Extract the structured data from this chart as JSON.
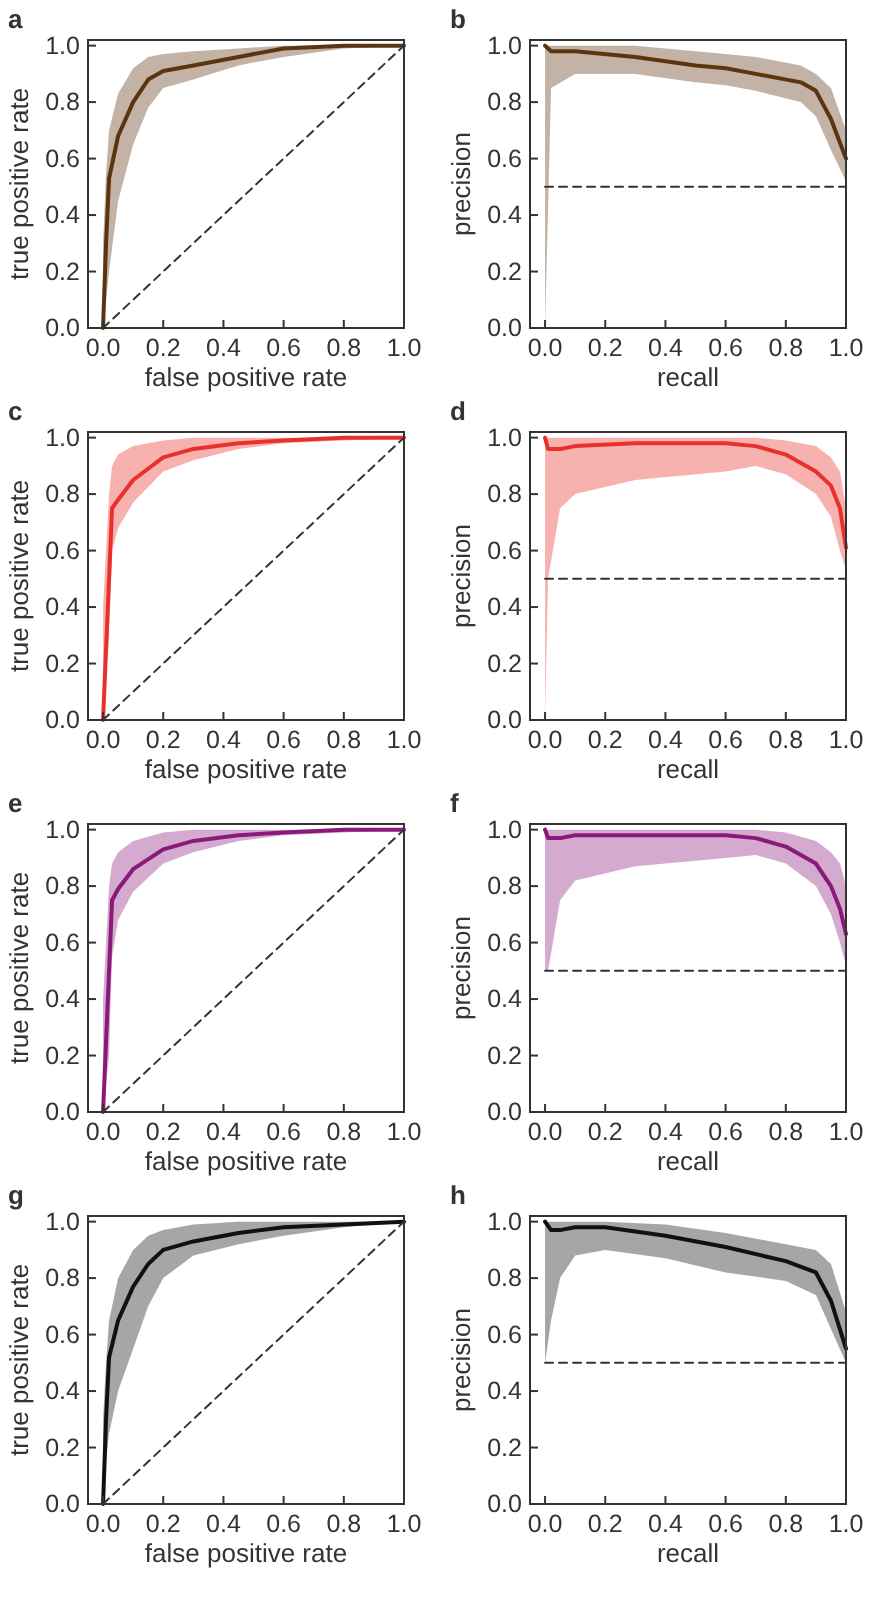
{
  "chart_data": [
    {
      "type": "line",
      "title": "a",
      "xlabel": "false positive rate",
      "ylabel": "true positive rate",
      "xlim": [
        -0.05,
        1.0
      ],
      "ylim": [
        0,
        1.02
      ],
      "xticks": [
        {
          "value": 0,
          "label": "0.0"
        },
        {
          "value": 0.2,
          "label": "0.2"
        },
        {
          "value": 0.4,
          "label": "0.4"
        },
        {
          "value": 0.6,
          "label": "0.6"
        },
        {
          "value": 0.8,
          "label": "0.8"
        },
        {
          "value": 1,
          "label": "1.0"
        }
      ],
      "yticks": [
        {
          "value": 0,
          "label": "0.0"
        },
        {
          "value": 0.2,
          "label": "0.2"
        },
        {
          "value": 0.4,
          "label": "0.4"
        },
        {
          "value": 0.6,
          "label": "0.6"
        },
        {
          "value": 0.8,
          "label": "0.8"
        },
        {
          "value": 1,
          "label": "1.0"
        }
      ],
      "series": [
        {
          "color": "#5c3510",
          "x": [
            0,
            0.01,
            0.02,
            0.05,
            0.1,
            0.15,
            0.2,
            0.3,
            0.45,
            0.6,
            0.8,
            1
          ],
          "values": [
            0,
            0.3,
            0.53,
            0.68,
            0.8,
            0.88,
            0.91,
            0.93,
            0.96,
            0.99,
            1,
            1
          ],
          "lower": [
            0,
            0.1,
            0.2,
            0.45,
            0.65,
            0.78,
            0.85,
            0.88,
            0.93,
            0.96,
            0.99,
            1
          ],
          "upper": [
            0.3,
            0.55,
            0.7,
            0.83,
            0.92,
            0.96,
            0.97,
            0.98,
            0.99,
            1,
            1,
            1
          ]
        },
        {
          "color": "#333333",
          "line_style": "dashed",
          "x": [
            0,
            1
          ],
          "values": [
            0,
            1
          ]
        }
      ]
    },
    {
      "type": "line",
      "title": "b",
      "xlabel": "recall",
      "ylabel": "precision",
      "xlim": [
        -0.05,
        1.0
      ],
      "ylim": [
        0,
        1.02
      ],
      "xticks": [
        {
          "value": 0,
          "label": "0.0"
        },
        {
          "value": 0.2,
          "label": "0.2"
        },
        {
          "value": 0.4,
          "label": "0.4"
        },
        {
          "value": 0.6,
          "label": "0.6"
        },
        {
          "value": 0.8,
          "label": "0.8"
        },
        {
          "value": 1,
          "label": "1.0"
        }
      ],
      "yticks": [
        {
          "value": 0,
          "label": "0.0"
        },
        {
          "value": 0.2,
          "label": "0.2"
        },
        {
          "value": 0.4,
          "label": "0.4"
        },
        {
          "value": 0.6,
          "label": "0.6"
        },
        {
          "value": 0.8,
          "label": "0.8"
        },
        {
          "value": 1,
          "label": "1.0"
        }
      ],
      "series": [
        {
          "color": "#5c3510",
          "x": [
            0,
            0.02,
            0.1,
            0.3,
            0.5,
            0.6,
            0.7,
            0.85,
            0.9,
            0.95,
            1
          ],
          "values": [
            1,
            0.98,
            0.98,
            0.96,
            0.93,
            0.92,
            0.9,
            0.87,
            0.84,
            0.74,
            0.6
          ],
          "lower": [
            0,
            0.85,
            0.9,
            0.9,
            0.87,
            0.86,
            0.84,
            0.8,
            0.75,
            0.63,
            0.52
          ],
          "upper": [
            1,
            1,
            1,
            1,
            0.98,
            0.97,
            0.96,
            0.93,
            0.9,
            0.85,
            0.7
          ]
        },
        {
          "color": "#333333",
          "line_style": "dashed",
          "x": [
            0,
            1
          ],
          "values": [
            0.5,
            0.5
          ]
        }
      ]
    },
    {
      "type": "line",
      "title": "c",
      "xlabel": "false positive rate",
      "ylabel": "true positive rate",
      "xlim": [
        -0.05,
        1.0
      ],
      "ylim": [
        0,
        1.02
      ],
      "xticks": [
        {
          "value": 0,
          "label": "0.0"
        },
        {
          "value": 0.2,
          "label": "0.2"
        },
        {
          "value": 0.4,
          "label": "0.4"
        },
        {
          "value": 0.6,
          "label": "0.6"
        },
        {
          "value": 0.8,
          "label": "0.8"
        },
        {
          "value": 1,
          "label": "1.0"
        }
      ],
      "yticks": [
        {
          "value": 0,
          "label": "0.0"
        },
        {
          "value": 0.2,
          "label": "0.2"
        },
        {
          "value": 0.4,
          "label": "0.4"
        },
        {
          "value": 0.6,
          "label": "0.6"
        },
        {
          "value": 0.8,
          "label": "0.8"
        },
        {
          "value": 1,
          "label": "1.0"
        }
      ],
      "series": [
        {
          "color": "#e8312b",
          "x": [
            0,
            0.02,
            0.03,
            0.05,
            0.1,
            0.2,
            0.3,
            0.45,
            0.6,
            0.8,
            1
          ],
          "values": [
            0,
            0.5,
            0.75,
            0.78,
            0.85,
            0.93,
            0.96,
            0.98,
            0.99,
            1,
            1
          ],
          "lower": [
            0,
            0.3,
            0.6,
            0.68,
            0.77,
            0.88,
            0.92,
            0.96,
            0.98,
            0.99,
            1
          ],
          "upper": [
            0.4,
            0.8,
            0.9,
            0.94,
            0.97,
            0.99,
            1,
            1,
            1,
            1,
            1
          ]
        },
        {
          "color": "#333333",
          "line_style": "dashed",
          "x": [
            0,
            1
          ],
          "values": [
            0,
            1
          ]
        }
      ]
    },
    {
      "type": "line",
      "title": "d",
      "xlabel": "recall",
      "ylabel": "precision",
      "xlim": [
        -0.05,
        1.0
      ],
      "ylim": [
        0,
        1.02
      ],
      "xticks": [
        {
          "value": 0,
          "label": "0.0"
        },
        {
          "value": 0.2,
          "label": "0.2"
        },
        {
          "value": 0.4,
          "label": "0.4"
        },
        {
          "value": 0.6,
          "label": "0.6"
        },
        {
          "value": 0.8,
          "label": "0.8"
        },
        {
          "value": 1,
          "label": "1.0"
        }
      ],
      "yticks": [
        {
          "value": 0,
          "label": "0.0"
        },
        {
          "value": 0.2,
          "label": "0.2"
        },
        {
          "value": 0.4,
          "label": "0.4"
        },
        {
          "value": 0.6,
          "label": "0.6"
        },
        {
          "value": 0.8,
          "label": "0.8"
        },
        {
          "value": 1,
          "label": "1.0"
        }
      ],
      "series": [
        {
          "color": "#e8312b",
          "x": [
            0,
            0.01,
            0.05,
            0.1,
            0.3,
            0.6,
            0.7,
            0.8,
            0.9,
            0.95,
            0.98,
            1
          ],
          "values": [
            1,
            0.96,
            0.96,
            0.97,
            0.98,
            0.98,
            0.97,
            0.94,
            0.88,
            0.83,
            0.75,
            0.61
          ],
          "lower": [
            0,
            0.5,
            0.75,
            0.8,
            0.85,
            0.88,
            0.9,
            0.87,
            0.8,
            0.72,
            0.6,
            0.53
          ],
          "upper": [
            1,
            1,
            1,
            1,
            1,
            1,
            1,
            0.99,
            0.97,
            0.93,
            0.88,
            0.75
          ]
        },
        {
          "color": "#333333",
          "line_style": "dashed",
          "x": [
            0,
            1
          ],
          "values": [
            0.5,
            0.5
          ]
        }
      ]
    },
    {
      "type": "line",
      "title": "e",
      "xlabel": "false positive rate",
      "ylabel": "true positive rate",
      "xlim": [
        -0.05,
        1.0
      ],
      "ylim": [
        0,
        1.02
      ],
      "xticks": [
        {
          "value": 0,
          "label": "0.0"
        },
        {
          "value": 0.2,
          "label": "0.2"
        },
        {
          "value": 0.4,
          "label": "0.4"
        },
        {
          "value": 0.6,
          "label": "0.6"
        },
        {
          "value": 0.8,
          "label": "0.8"
        },
        {
          "value": 1,
          "label": "1.0"
        }
      ],
      "yticks": [
        {
          "value": 0,
          "label": "0.0"
        },
        {
          "value": 0.2,
          "label": "0.2"
        },
        {
          "value": 0.4,
          "label": "0.4"
        },
        {
          "value": 0.6,
          "label": "0.6"
        },
        {
          "value": 0.8,
          "label": "0.8"
        },
        {
          "value": 1,
          "label": "1.0"
        }
      ],
      "series": [
        {
          "color": "#8a1a7a",
          "x": [
            0,
            0.02,
            0.03,
            0.05,
            0.1,
            0.2,
            0.3,
            0.45,
            0.6,
            0.8,
            1
          ],
          "values": [
            0,
            0.5,
            0.75,
            0.79,
            0.86,
            0.93,
            0.96,
            0.98,
            0.99,
            1,
            1
          ],
          "lower": [
            0,
            0.2,
            0.55,
            0.68,
            0.78,
            0.88,
            0.92,
            0.96,
            0.98,
            0.99,
            1
          ],
          "upper": [
            0.4,
            0.8,
            0.88,
            0.92,
            0.96,
            0.99,
            1,
            1,
            1,
            1,
            1
          ]
        },
        {
          "color": "#333333",
          "line_style": "dashed",
          "x": [
            0,
            1
          ],
          "values": [
            0,
            1
          ]
        }
      ]
    },
    {
      "type": "line",
      "title": "f",
      "xlabel": "recall",
      "ylabel": "precision",
      "xlim": [
        -0.05,
        1.0
      ],
      "ylim": [
        0,
        1.02
      ],
      "xticks": [
        {
          "value": 0,
          "label": "0.0"
        },
        {
          "value": 0.2,
          "label": "0.2"
        },
        {
          "value": 0.4,
          "label": "0.4"
        },
        {
          "value": 0.6,
          "label": "0.6"
        },
        {
          "value": 0.8,
          "label": "0.8"
        },
        {
          "value": 1,
          "label": "1.0"
        }
      ],
      "yticks": [
        {
          "value": 0,
          "label": "0.0"
        },
        {
          "value": 0.2,
          "label": "0.2"
        },
        {
          "value": 0.4,
          "label": "0.4"
        },
        {
          "value": 0.6,
          "label": "0.6"
        },
        {
          "value": 0.8,
          "label": "0.8"
        },
        {
          "value": 1,
          "label": "1.0"
        }
      ],
      "series": [
        {
          "color": "#8a1a7a",
          "x": [
            0,
            0.01,
            0.05,
            0.1,
            0.3,
            0.6,
            0.7,
            0.8,
            0.9,
            0.95,
            0.98,
            1
          ],
          "values": [
            1,
            0.97,
            0.97,
            0.98,
            0.98,
            0.98,
            0.97,
            0.94,
            0.88,
            0.8,
            0.72,
            0.63
          ],
          "lower": [
            0.5,
            0.5,
            0.75,
            0.82,
            0.87,
            0.9,
            0.91,
            0.88,
            0.8,
            0.7,
            0.6,
            0.52
          ],
          "upper": [
            1,
            1,
            1,
            1,
            1,
            1,
            1,
            0.99,
            0.96,
            0.92,
            0.88,
            0.8
          ]
        },
        {
          "color": "#333333",
          "line_style": "dashed",
          "x": [
            0,
            1
          ],
          "values": [
            0.5,
            0.5
          ]
        }
      ]
    },
    {
      "type": "line",
      "title": "g",
      "xlabel": "false positive rate",
      "ylabel": "true positive rate",
      "xlim": [
        -0.05,
        1.0
      ],
      "ylim": [
        0,
        1.02
      ],
      "xticks": [
        {
          "value": 0,
          "label": "0.0"
        },
        {
          "value": 0.2,
          "label": "0.2"
        },
        {
          "value": 0.4,
          "label": "0.4"
        },
        {
          "value": 0.6,
          "label": "0.6"
        },
        {
          "value": 0.8,
          "label": "0.8"
        },
        {
          "value": 1,
          "label": "1.0"
        }
      ],
      "yticks": [
        {
          "value": 0,
          "label": "0.0"
        },
        {
          "value": 0.2,
          "label": "0.2"
        },
        {
          "value": 0.4,
          "label": "0.4"
        },
        {
          "value": 0.6,
          "label": "0.6"
        },
        {
          "value": 0.8,
          "label": "0.8"
        },
        {
          "value": 1,
          "label": "1.0"
        }
      ],
      "series": [
        {
          "color": "#111111",
          "x": [
            0,
            0.01,
            0.02,
            0.05,
            0.1,
            0.15,
            0.2,
            0.3,
            0.45,
            0.6,
            0.8,
            1
          ],
          "values": [
            0,
            0.3,
            0.52,
            0.65,
            0.77,
            0.85,
            0.9,
            0.93,
            0.96,
            0.98,
            0.99,
            1
          ],
          "lower": [
            0,
            0.15,
            0.25,
            0.4,
            0.55,
            0.7,
            0.8,
            0.88,
            0.92,
            0.95,
            0.98,
            1
          ],
          "upper": [
            0.3,
            0.5,
            0.65,
            0.8,
            0.9,
            0.95,
            0.97,
            0.99,
            1,
            1,
            1,
            1
          ]
        },
        {
          "color": "#333333",
          "line_style": "dashed",
          "x": [
            0,
            1
          ],
          "values": [
            0,
            1
          ]
        }
      ]
    },
    {
      "type": "line",
      "title": "h",
      "xlabel": "recall",
      "ylabel": "precision",
      "xlim": [
        -0.05,
        1.0
      ],
      "ylim": [
        0,
        1.02
      ],
      "xticks": [
        {
          "value": 0,
          "label": "0.0"
        },
        {
          "value": 0.2,
          "label": "0.2"
        },
        {
          "value": 0.4,
          "label": "0.4"
        },
        {
          "value": 0.6,
          "label": "0.6"
        },
        {
          "value": 0.8,
          "label": "0.8"
        },
        {
          "value": 1,
          "label": "1.0"
        }
      ],
      "yticks": [
        {
          "value": 0,
          "label": "0.0"
        },
        {
          "value": 0.2,
          "label": "0.2"
        },
        {
          "value": 0.4,
          "label": "0.4"
        },
        {
          "value": 0.6,
          "label": "0.6"
        },
        {
          "value": 0.8,
          "label": "0.8"
        },
        {
          "value": 1,
          "label": "1.0"
        }
      ],
      "series": [
        {
          "color": "#111111",
          "x": [
            0,
            0.02,
            0.05,
            0.1,
            0.2,
            0.4,
            0.6,
            0.8,
            0.9,
            0.95,
            1
          ],
          "values": [
            1,
            0.97,
            0.97,
            0.98,
            0.98,
            0.95,
            0.91,
            0.86,
            0.82,
            0.72,
            0.55
          ],
          "lower": [
            0.5,
            0.65,
            0.8,
            0.88,
            0.9,
            0.87,
            0.82,
            0.79,
            0.74,
            0.62,
            0.5
          ],
          "upper": [
            1,
            1,
            1,
            1,
            1,
            0.99,
            0.96,
            0.92,
            0.9,
            0.85,
            0.68
          ]
        },
        {
          "color": "#333333",
          "line_style": "dashed",
          "x": [
            0,
            1
          ],
          "values": [
            0.5,
            0.5
          ]
        }
      ]
    }
  ]
}
